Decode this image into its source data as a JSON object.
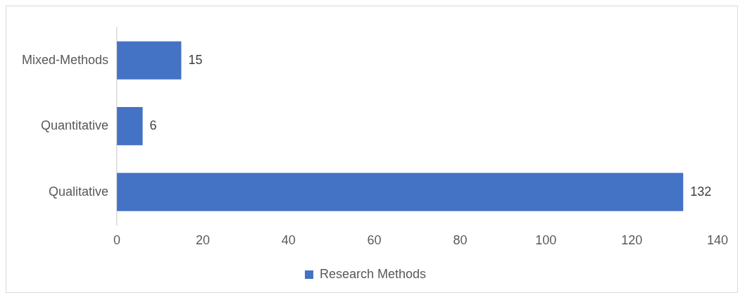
{
  "chart_data": {
    "type": "bar",
    "orientation": "horizontal",
    "categories": [
      "Mixed-Methods",
      "Quantitative",
      "Qualitative"
    ],
    "series": [
      {
        "name": "Research Methods",
        "color": "#4472c4",
        "values": [
          15,
          6,
          132
        ]
      }
    ],
    "xlim": [
      0,
      140
    ],
    "xticks": [
      0,
      20,
      40,
      60,
      80,
      100,
      120,
      140
    ],
    "grid": false,
    "legend": "bottom",
    "data_labels": true
  }
}
